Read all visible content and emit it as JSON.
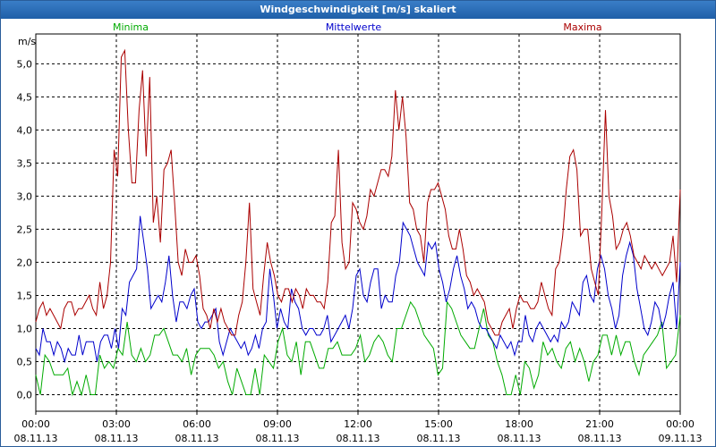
{
  "window": {
    "title": "Windgeschwindigkeit [m/s] skaliert"
  },
  "chart_data": {
    "type": "line",
    "ylabel": "m/s",
    "ylim": [
      -0.25,
      5.45
    ],
    "xlim": [
      0,
      24
    ],
    "grid": true,
    "y_ticks": [
      "0,0",
      "0,5",
      "1,0",
      "1,5",
      "2,0",
      "2,5",
      "3,0",
      "3,5",
      "4,0",
      "4,5",
      "5,0"
    ],
    "x_ticks": [
      {
        "time": "00:00",
        "date": "08.11.13"
      },
      {
        "time": "03:00",
        "date": "08.11.13"
      },
      {
        "time": "06:00",
        "date": "08.11.13"
      },
      {
        "time": "09:00",
        "date": "08.11.13"
      },
      {
        "time": "12:00",
        "date": "08.11.13"
      },
      {
        "time": "15:00",
        "date": "08.11.13"
      },
      {
        "time": "18:00",
        "date": "08.11.13"
      },
      {
        "time": "21:00",
        "date": "08.11.13"
      },
      {
        "time": "00:00",
        "date": "09.11.13"
      }
    ],
    "series": [
      {
        "name": "Minima",
        "color": "#00aa00",
        "values": [
          0.3,
          0.0,
          0.6,
          0.5,
          0.3,
          0.3,
          0.3,
          0.4,
          0.0,
          0.2,
          0.0,
          0.3,
          0.0,
          0.0,
          0.6,
          0.4,
          0.5,
          0.4,
          0.7,
          0.6,
          1.1,
          0.6,
          0.5,
          0.7,
          0.5,
          0.6,
          0.9,
          0.9,
          1.0,
          0.8,
          0.6,
          0.6,
          0.5,
          0.7,
          0.3,
          0.6,
          0.7,
          0.7,
          0.7,
          0.6,
          0.4,
          0.5,
          0.2,
          0.0,
          0.4,
          0.2,
          0.0,
          0.0,
          0.4,
          0.0,
          0.6,
          0.5,
          0.4,
          0.8,
          1.0,
          0.6,
          0.5,
          0.8,
          0.3,
          0.8,
          0.8,
          0.6,
          0.4,
          0.4,
          0.7,
          0.7,
          0.8,
          0.6,
          0.6,
          0.6,
          0.7,
          0.9,
          0.5,
          0.6,
          0.8,
          0.9,
          0.8,
          0.6,
          0.5,
          1.0,
          1.0,
          1.2,
          1.4,
          1.3,
          1.1,
          0.9,
          0.8,
          0.7,
          0.3,
          0.4,
          1.4,
          1.3,
          1.1,
          0.9,
          0.8,
          0.7,
          0.7,
          1.0,
          1.3,
          0.9,
          0.8,
          0.5,
          0.3,
          0.0,
          0.0,
          0.3,
          0.0,
          0.5,
          0.4,
          0.1,
          0.3,
          0.8,
          0.6,
          0.7,
          0.5,
          0.4,
          0.7,
          0.8,
          0.5,
          0.7,
          0.5,
          0.2,
          0.5,
          0.6,
          0.9,
          0.9,
          0.6,
          0.9,
          0.6,
          0.8,
          0.8,
          0.5,
          0.3,
          0.6,
          0.7,
          0.8,
          0.9,
          1.1,
          0.4,
          0.5,
          0.6,
          1.2
        ]
      },
      {
        "name": "Mittelwerte",
        "color": "#0000cc",
        "values": [
          0.7,
          0.6,
          1.0,
          0.8,
          0.8,
          0.6,
          0.8,
          0.7,
          0.5,
          0.7,
          0.6,
          0.6,
          0.9,
          0.6,
          0.8,
          0.8,
          0.8,
          0.5,
          0.8,
          0.9,
          0.9,
          0.7,
          1.0,
          0.7,
          1.3,
          1.2,
          1.7,
          1.8,
          1.9,
          2.7,
          2.3,
          1.9,
          1.3,
          1.4,
          1.5,
          1.4,
          1.7,
          2.1,
          1.5,
          1.1,
          1.4,
          1.4,
          1.3,
          1.5,
          1.6,
          1.1,
          1.0,
          1.1,
          1.1,
          1.2,
          1.3,
          0.8,
          0.6,
          0.8,
          1.0,
          0.9,
          0.8,
          0.7,
          0.8,
          0.6,
          0.7,
          0.9,
          0.7,
          1.0,
          1.1,
          1.9,
          1.5,
          1.0,
          1.3,
          1.1,
          1.0,
          1.6,
          1.4,
          1.3,
          1.0,
          0.9,
          1.0,
          1.0,
          0.9,
          0.9,
          1.0,
          1.2,
          0.8,
          0.9,
          1.0,
          1.1,
          1.2,
          1.0,
          1.3,
          1.8,
          1.9,
          1.5,
          1.4,
          1.7,
          1.9,
          1.9,
          1.3,
          1.5,
          1.4,
          1.4,
          1.8,
          2.0,
          2.6,
          2.5,
          2.4,
          2.2,
          2.0,
          1.9,
          1.8,
          2.3,
          2.2,
          2.3,
          1.9,
          1.7,
          1.4,
          1.6,
          1.9,
          2.1,
          1.8,
          1.6,
          1.3,
          1.4,
          1.3,
          1.1,
          1.0,
          1.0,
          0.9,
          0.8,
          0.7,
          0.9,
          0.8,
          0.7,
          0.8,
          0.6,
          0.8,
          0.8,
          1.2,
          0.9,
          0.8,
          1.0,
          1.1,
          1.0,
          0.9,
          0.8,
          0.9,
          0.8,
          1.1,
          1.0,
          1.1,
          1.4,
          1.3,
          1.2,
          1.7,
          1.8,
          1.5,
          1.4,
          1.9,
          2.1,
          1.9,
          1.5,
          1.3,
          1.0,
          1.2,
          1.8,
          2.1,
          2.3,
          2.1,
          1.6,
          1.3,
          1.0,
          0.9,
          1.1,
          1.4,
          1.3,
          1.0,
          1.2,
          1.5,
          1.7,
          1.0,
          2.0
        ]
      },
      {
        "name": "Maxima",
        "color": "#aa0000",
        "values": [
          1.1,
          1.3,
          1.4,
          1.2,
          1.3,
          1.2,
          1.1,
          1.0,
          1.3,
          1.4,
          1.4,
          1.2,
          1.3,
          1.3,
          1.4,
          1.5,
          1.3,
          1.2,
          1.7,
          1.3,
          1.5,
          2.0,
          3.7,
          3.3,
          5.1,
          5.2,
          4.0,
          3.2,
          3.2,
          4.3,
          4.9,
          3.6,
          4.8,
          2.6,
          3.0,
          2.3,
          3.4,
          3.5,
          3.7,
          2.9,
          2.0,
          1.8,
          2.2,
          2.0,
          2.0,
          2.1,
          1.8,
          1.3,
          1.2,
          1.0,
          1.3,
          1.1,
          1.3,
          1.1,
          1.0,
          0.9,
          0.9,
          1.2,
          1.4,
          2.0,
          2.9,
          1.6,
          1.4,
          1.2,
          1.8,
          2.3,
          2.0,
          1.8,
          1.5,
          1.4,
          1.6,
          1.6,
          1.4,
          1.6,
          1.5,
          1.3,
          1.6,
          1.5,
          1.5,
          1.4,
          1.4,
          1.3,
          1.7,
          2.6,
          2.7,
          3.7,
          2.3,
          1.9,
          2.0,
          2.9,
          2.8,
          2.6,
          2.5,
          2.7,
          3.1,
          3.0,
          3.2,
          3.4,
          3.4,
          3.3,
          3.6,
          4.6,
          4.0,
          4.5,
          3.9,
          2.9,
          2.8,
          2.5,
          2.4,
          2.0,
          2.9,
          3.1,
          3.1,
          3.2,
          3.0,
          2.8,
          2.4,
          2.2,
          2.2,
          2.5,
          2.2,
          1.8,
          1.7,
          1.5,
          1.6,
          1.5,
          1.4,
          1.1,
          1.0,
          0.9,
          0.9,
          1.1,
          1.2,
          1.3,
          1.0,
          1.3,
          1.5,
          1.4,
          1.4,
          1.3,
          1.3,
          1.4,
          1.7,
          1.5,
          1.3,
          1.2,
          1.9,
          2.0,
          2.4,
          3.1,
          3.6,
          3.7,
          3.4,
          2.4,
          2.5,
          2.5,
          1.9,
          1.7,
          1.5,
          2.8,
          4.3,
          3.0,
          2.7,
          2.2,
          2.3,
          2.5,
          2.6,
          2.4,
          2.1,
          2.0,
          1.9,
          2.1,
          2.0,
          1.9,
          2.0,
          1.9,
          1.8,
          1.9,
          2.0,
          2.4,
          1.7,
          3.1
        ]
      }
    ]
  }
}
